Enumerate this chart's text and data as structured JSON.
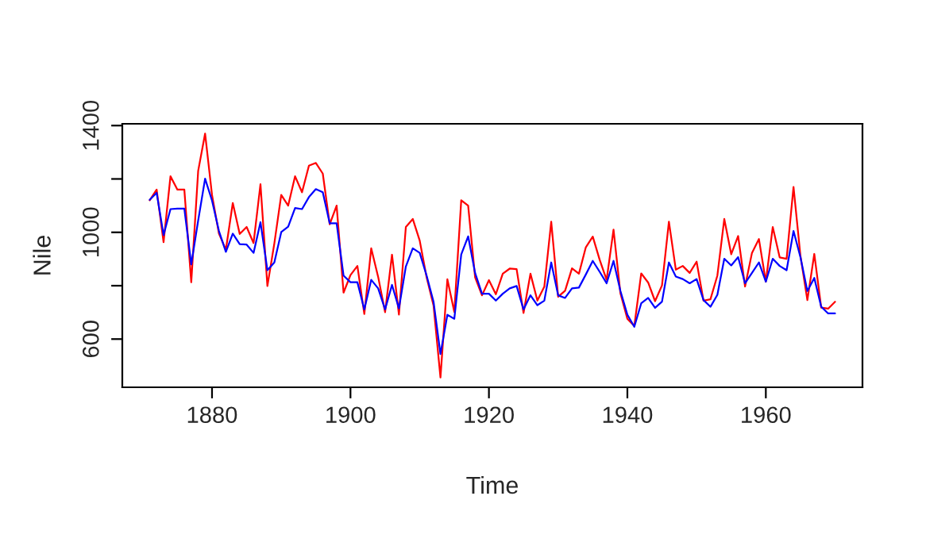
{
  "chart_data": {
    "type": "line",
    "xlabel": "Time",
    "ylabel": "Nile",
    "x": [
      1871,
      1872,
      1873,
      1874,
      1875,
      1876,
      1877,
      1878,
      1879,
      1880,
      1881,
      1882,
      1883,
      1884,
      1885,
      1886,
      1887,
      1888,
      1889,
      1890,
      1891,
      1892,
      1893,
      1894,
      1895,
      1896,
      1897,
      1898,
      1899,
      1900,
      1901,
      1902,
      1903,
      1904,
      1905,
      1906,
      1907,
      1908,
      1909,
      1910,
      1911,
      1912,
      1913,
      1914,
      1915,
      1916,
      1917,
      1918,
      1919,
      1920,
      1921,
      1922,
      1923,
      1924,
      1925,
      1926,
      1927,
      1928,
      1929,
      1930,
      1931,
      1932,
      1933,
      1934,
      1935,
      1936,
      1937,
      1938,
      1939,
      1940,
      1941,
      1942,
      1943,
      1944,
      1945,
      1946,
      1947,
      1948,
      1949,
      1950,
      1951,
      1952,
      1953,
      1954,
      1955,
      1956,
      1957,
      1958,
      1959,
      1960,
      1961,
      1962,
      1963,
      1964,
      1965,
      1966,
      1967,
      1968,
      1969,
      1970
    ],
    "series": [
      {
        "color": "#ff0000",
        "values": [
          1120,
          1160,
          963,
          1210,
          1160,
          1160,
          813,
          1230,
          1370,
          1140,
          995,
          935,
          1110,
          994,
          1020,
          960,
          1180,
          799,
          958,
          1140,
          1100,
          1210,
          1150,
          1250,
          1260,
          1220,
          1030,
          1100,
          774,
          840,
          874,
          694,
          940,
          833,
          701,
          916,
          692,
          1020,
          1050,
          969,
          831,
          726,
          456,
          824,
          702,
          1120,
          1100,
          832,
          764,
          821,
          768,
          845,
          864,
          862,
          698,
          845,
          744,
          796,
          1040,
          759,
          781,
          865,
          845,
          944,
          984,
          897,
          822,
          1010,
          771,
          676,
          649,
          846,
          812,
          742,
          801,
          1040,
          860,
          874,
          848,
          890,
          744,
          749,
          838,
          1050,
          918,
          986,
          797,
          923,
          975,
          815,
          1020,
          906,
          901,
          1170,
          912,
          746,
          919,
          718,
          714,
          740
        ]
      },
      {
        "color": "#0000ff",
        "values": [
          1122,
          1148,
          990,
          1087,
          1089,
          1089,
          880,
          1044,
          1201,
          1119,
          1005,
          927,
          995,
          956,
          954,
          923,
          1038,
          858,
          887,
          1001,
          1021,
          1091,
          1087,
          1132,
          1162,
          1150,
          1034,
          1034,
          838,
          813,
          813,
          711,
          822,
          790,
          711,
          803,
          715,
          872,
          940,
          923,
          838,
          740,
          544,
          691,
          676,
          917,
          985,
          848,
          770,
          770,
          744,
          770,
          790,
          799,
          711,
          764,
          727,
          744,
          887,
          764,
          754,
          790,
          793,
          842,
          893,
          852,
          809,
          893,
          780,
          691,
          646,
          734,
          754,
          717,
          740,
          887,
          834,
          825,
          809,
          825,
          746,
          721,
          766,
          901,
          876,
          907,
          809,
          848,
          887,
          815,
          901,
          874,
          858,
          1005,
          907,
          780,
          829,
          721,
          696,
          696
        ]
      }
    ],
    "xlim": [
      1867.04,
      1973.96
    ],
    "ylim": [
      419.4,
      1406.6
    ],
    "xticks": [
      1880,
      1900,
      1920,
      1940,
      1960
    ],
    "yticks": [
      600,
      {
        "value": 800,
        "label": null
      },
      1000,
      {
        "value": 1200,
        "label": null
      },
      1400
    ],
    "grid": false,
    "legend": false,
    "line_style": "solid",
    "marker": "none"
  }
}
